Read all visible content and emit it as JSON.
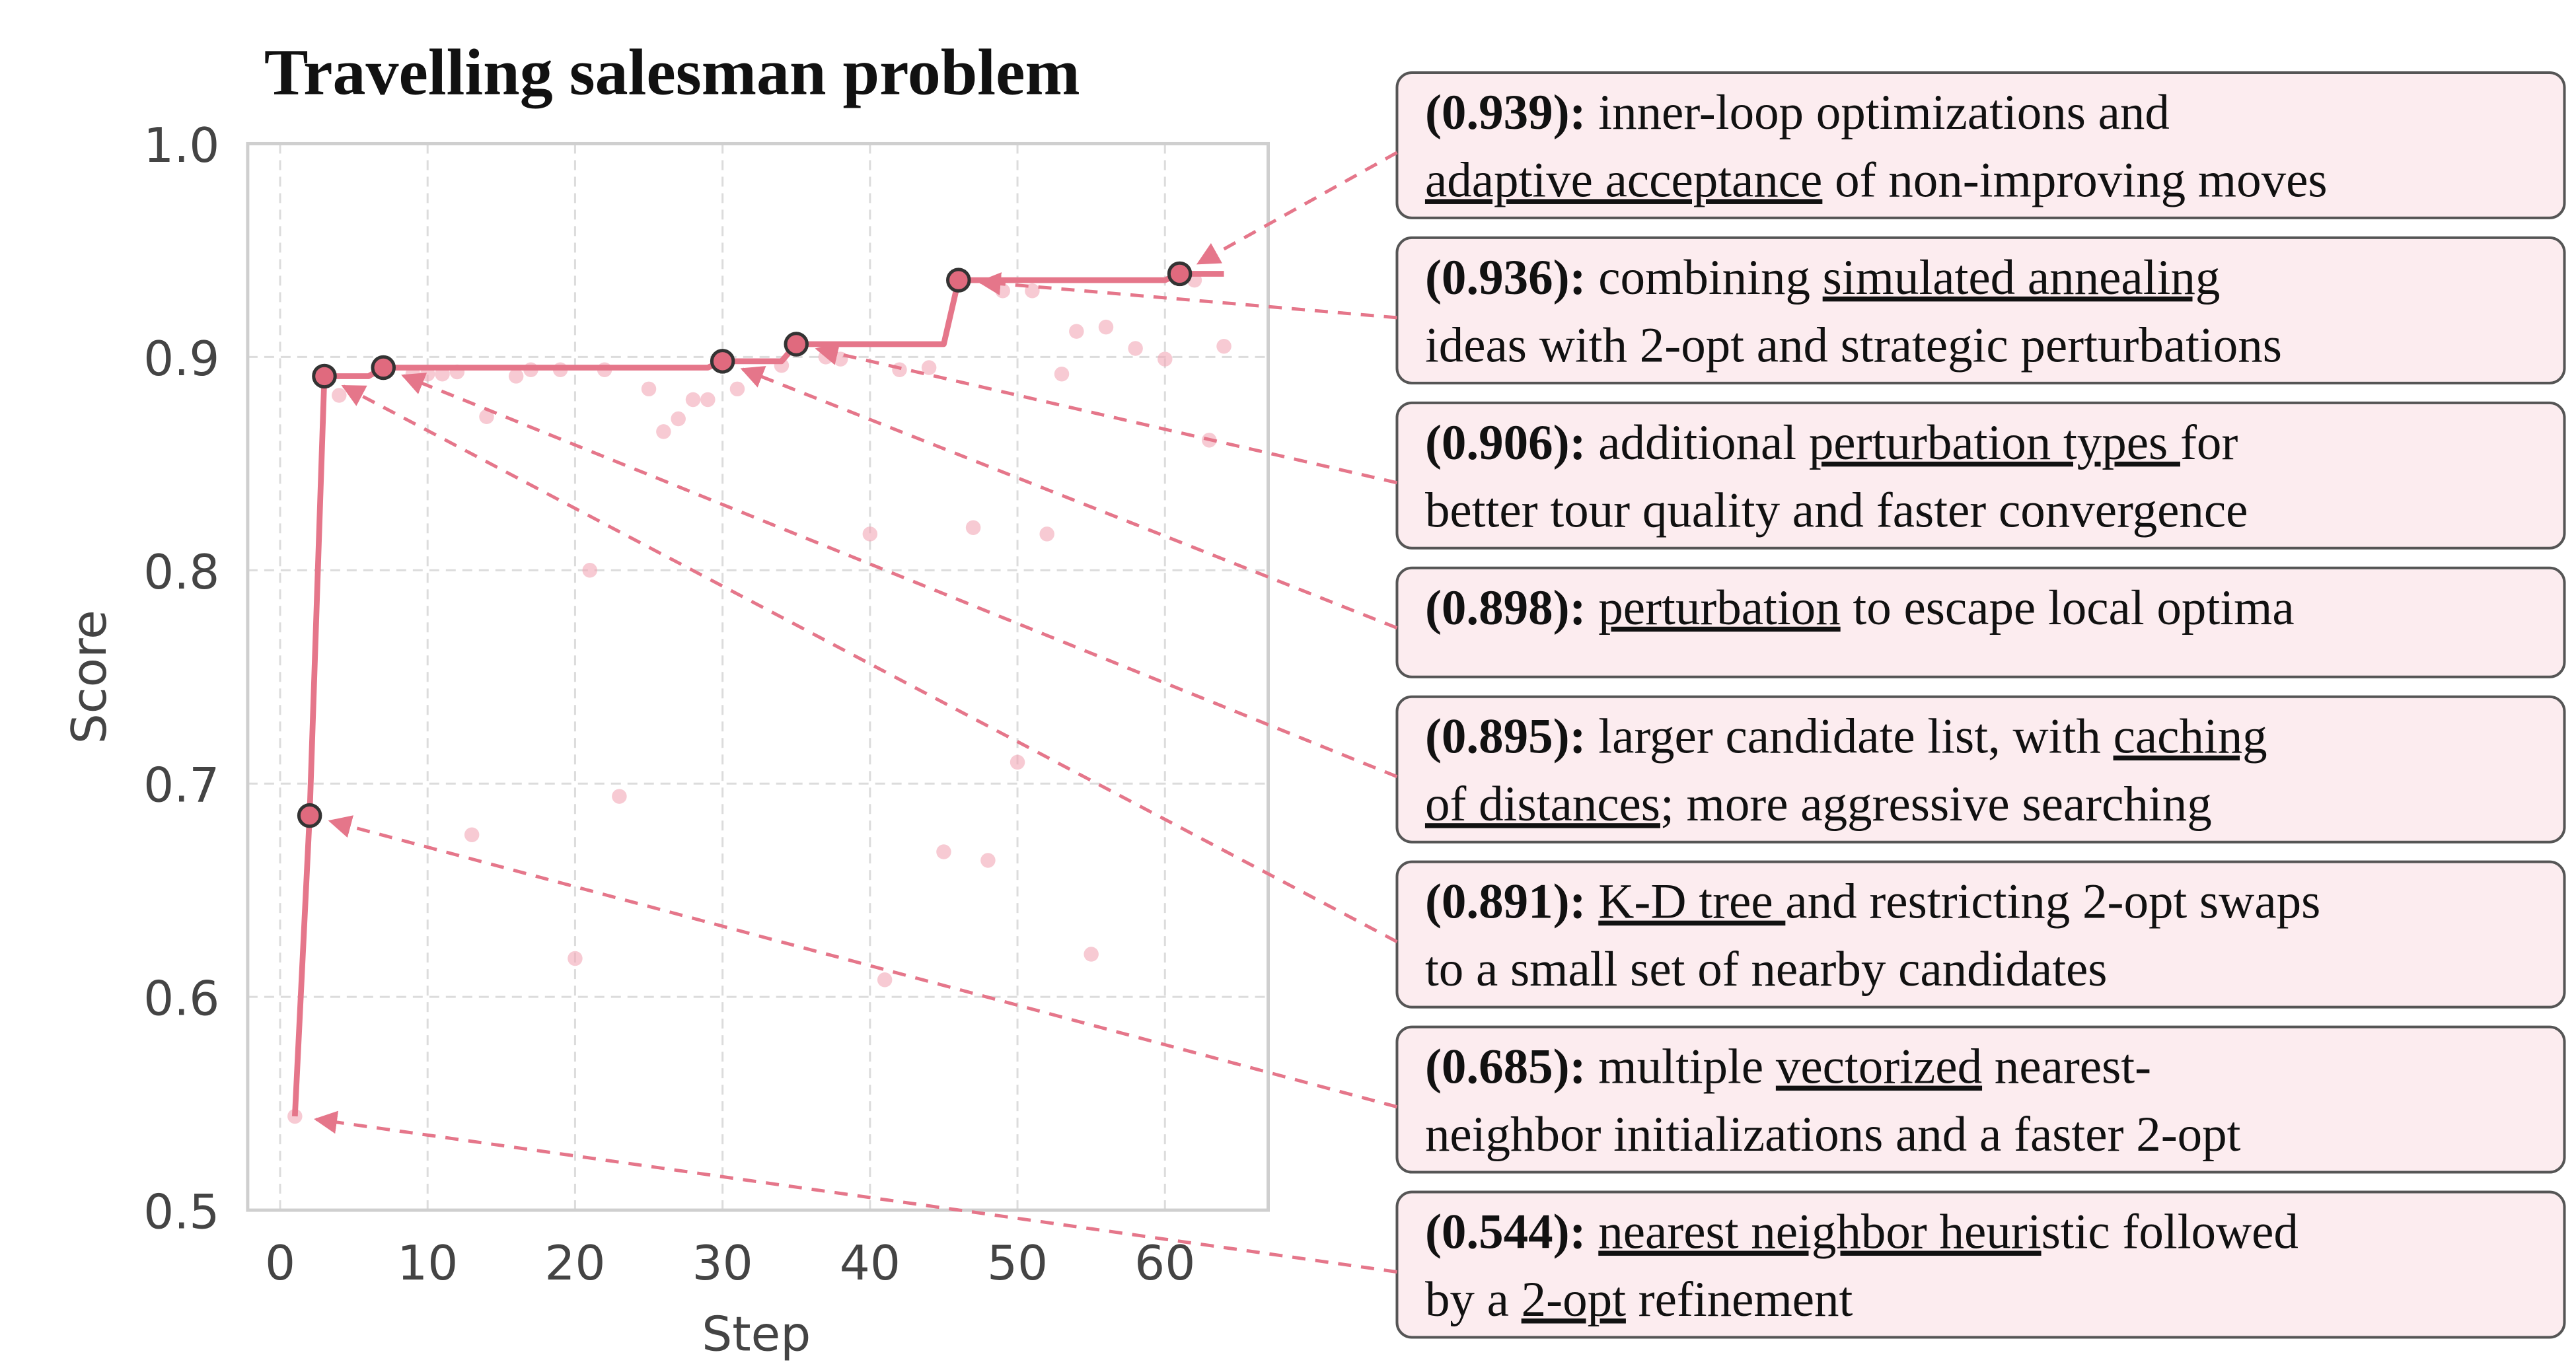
{
  "chart_data": {
    "type": "line",
    "title": "Travelling salesman problem",
    "xlabel": "Step",
    "ylabel": "Score",
    "xlim": [
      -2.2,
      67
    ],
    "ylim": [
      0.5,
      1.0
    ],
    "xticks": [
      0,
      10,
      20,
      30,
      40,
      50,
      60
    ],
    "yticks": [
      0.5,
      0.6,
      0.7,
      0.8,
      0.9,
      {
        "value": 1.0,
        "label": "1.0"
      }
    ],
    "grid": true,
    "series": [
      {
        "type": "scatter",
        "color": "#f2a7b5",
        "x": [
          1,
          4,
          9,
          10,
          11,
          12,
          13,
          14,
          16,
          17,
          19,
          20,
          21,
          22,
          23,
          25,
          26,
          27,
          28,
          29,
          31,
          34,
          37,
          38,
          40,
          41,
          42,
          44,
          45,
          47,
          48,
          49,
          50,
          51,
          52,
          53,
          54,
          55,
          56,
          58,
          60,
          62,
          63,
          64
        ],
        "values": [
          0.544,
          0.882,
          0.892,
          0.892,
          0.892,
          0.893,
          0.676,
          0.872,
          0.891,
          0.894,
          0.894,
          0.618,
          0.8,
          0.894,
          0.694,
          0.885,
          0.865,
          0.871,
          0.88,
          0.88,
          0.885,
          0.896,
          0.9,
          0.899,
          0.817,
          0.608,
          0.894,
          0.895,
          0.668,
          0.82,
          0.664,
          0.931,
          0.71,
          0.931,
          0.817,
          0.892,
          0.912,
          0.62,
          0.914,
          0.904,
          0.899,
          0.936,
          0.861,
          0.905
        ]
      },
      {
        "type": "line",
        "color": "#e5768a",
        "x": [
          1,
          2,
          3,
          6,
          7,
          29,
          30,
          34,
          35,
          45,
          46,
          60,
          61,
          64
        ],
        "values": [
          0.544,
          0.685,
          0.891,
          0.891,
          0.895,
          0.895,
          0.898,
          0.898,
          0.906,
          0.906,
          0.936,
          0.936,
          0.939,
          0.939
        ]
      },
      {
        "type": "highlight",
        "color": "#e06a7e",
        "x": [
          2,
          3,
          7,
          30,
          35,
          46,
          61
        ],
        "values": [
          0.685,
          0.891,
          0.895,
          0.898,
          0.906,
          0.936,
          0.939
        ]
      }
    ],
    "annotations": [
      {
        "x": 61,
        "y": 0.939,
        "label": "(0.939):",
        "lines": [
          [
            " inner-loop optimizations and"
          ],
          [
            {
              "text": "adaptive acceptance",
              "underline": true
            },
            " of non-improving moves"
          ]
        ]
      },
      {
        "x": 46,
        "y": 0.936,
        "label": "(0.936):",
        "lines": [
          [
            " combining ",
            {
              "text": "simulated annealing",
              "underline": true
            }
          ],
          [
            "ideas with 2-opt and strategic perturbations"
          ]
        ]
      },
      {
        "x": 35,
        "y": 0.906,
        "label": "(0.906):",
        "lines": [
          [
            " additional ",
            {
              "text": "perturbation types ",
              "underline": true
            },
            "for"
          ],
          [
            "better tour quality and faster convergence"
          ]
        ]
      },
      {
        "x": 30,
        "y": 0.898,
        "label": "(0.898):",
        "lines": [
          [
            " ",
            {
              "text": "perturbation",
              "underline": true
            },
            " to escape local optima"
          ]
        ]
      },
      {
        "x": 7,
        "y": 0.895,
        "label": "(0.895):",
        "lines": [
          [
            " larger candidate list, with ",
            {
              "text": "caching",
              "underline": true
            }
          ],
          [
            {
              "text": "of distances",
              "underline": true
            },
            "; more aggressive searching"
          ]
        ]
      },
      {
        "x": 3,
        "y": 0.891,
        "label": "(0.891):",
        "lines": [
          [
            " ",
            {
              "text": "K-D tree ",
              "underline": true
            },
            "and restricting 2-opt swaps"
          ],
          [
            "to a small set of nearby candidates"
          ]
        ]
      },
      {
        "x": 2,
        "y": 0.685,
        "label": "(0.685):",
        "lines": [
          [
            " multiple ",
            {
              "text": "vectorized",
              "underline": true
            },
            " nearest-"
          ],
          [
            "neighbor initializations and a faster 2-opt"
          ]
        ]
      },
      {
        "x": 1,
        "y": 0.544,
        "label": "(0.544):",
        "lines": [
          [
            " ",
            {
              "text": "nearest neighbor heuri",
              "underline": true
            },
            "stic followed"
          ],
          [
            "by a ",
            {
              "text": "2-opt",
              "underline": true
            },
            " refinement"
          ]
        ]
      }
    ]
  }
}
